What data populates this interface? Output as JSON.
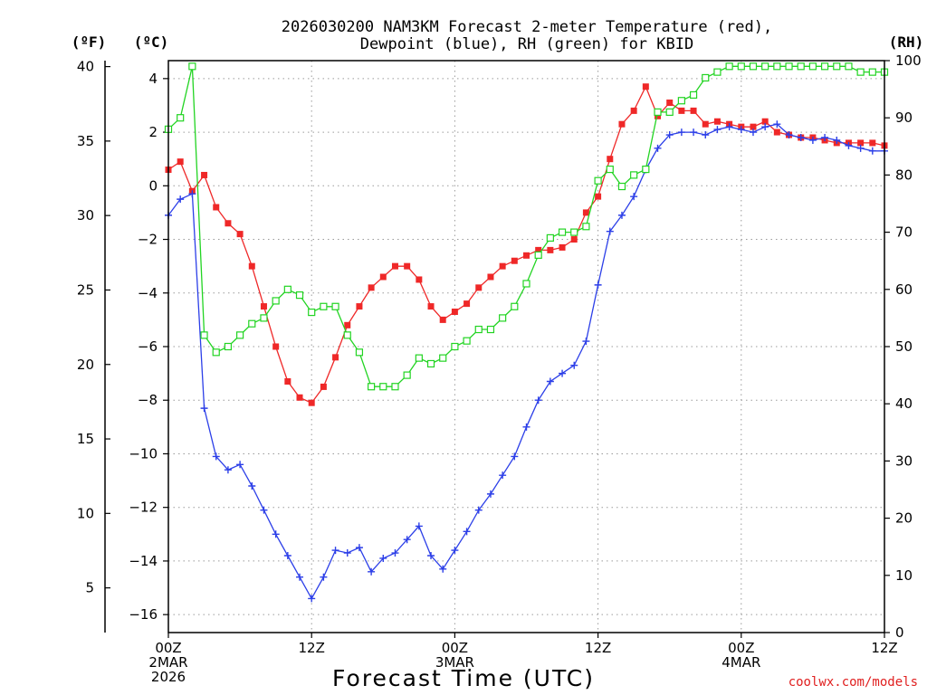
{
  "chart_data": {
    "type": "line",
    "title_line1": "2026030200 NAM3KM Forecast 2-meter Temperature (red),",
    "title_line2": "Dewpoint (blue), RH (green) for KBID",
    "xlabel": "Forecast Time (UTC)",
    "left_unit_f": "(ºF)",
    "left_unit_c": "(ºC)",
    "right_unit": "(RH)",
    "credit": "coolwx.com/models",
    "x_range_hours": [
      0,
      60
    ],
    "ylim_c": [
      -16.67,
      4.67
    ],
    "ylim_f": [
      2,
      40.4
    ],
    "ylim_rh": [
      0,
      100
    ],
    "celsius_ticks": [
      "4",
      "2",
      "0",
      "−2",
      "−4",
      "−6",
      "−8",
      "−10",
      "−12",
      "−14",
      "−16"
    ],
    "fahrenheit_ticks": [
      "40",
      "35",
      "30",
      "25",
      "20",
      "15",
      "10",
      "5"
    ],
    "rh_ticks": [
      "100",
      "90",
      "80",
      "70",
      "60",
      "50",
      "40",
      "30",
      "20",
      "10",
      "0"
    ],
    "x_ticks": [
      {
        "hour": 0,
        "line1": "00Z",
        "line2": "2MAR",
        "line3": "2026"
      },
      {
        "hour": 12,
        "line1": "12Z",
        "line2": "",
        "line3": ""
      },
      {
        "hour": 24,
        "line1": "00Z",
        "line2": "3MAR",
        "line3": ""
      },
      {
        "hour": 36,
        "line1": "12Z",
        "line2": "",
        "line3": ""
      },
      {
        "hour": 48,
        "line1": "00Z",
        "line2": "4MAR",
        "line3": ""
      },
      {
        "hour": 60,
        "line1": "12Z",
        "line2": "",
        "line3": ""
      }
    ],
    "x_hours": [
      0,
      1,
      2,
      3,
      4,
      5,
      6,
      7,
      8,
      9,
      10,
      11,
      12,
      13,
      14,
      15,
      16,
      17,
      18,
      19,
      20,
      21,
      22,
      23,
      24,
      25,
      26,
      27,
      28,
      29,
      30,
      31,
      32,
      33,
      34,
      35,
      36,
      37,
      38,
      39,
      40,
      41,
      42,
      43,
      44,
      45,
      46,
      47,
      48,
      49,
      50,
      51,
      52,
      53,
      54,
      55,
      56,
      57,
      58,
      59,
      60
    ],
    "series": [
      {
        "name": "2-meter Temperature",
        "units": "°C",
        "color": "#ef2828",
        "marker": "filled-square",
        "values": [
          0.6,
          0.9,
          -0.2,
          0.4,
          -0.8,
          -1.4,
          -1.8,
          -3.0,
          -4.5,
          -6.0,
          -7.3,
          -7.9,
          -8.1,
          -7.5,
          -6.4,
          -5.2,
          -4.5,
          -3.8,
          -3.4,
          -3.0,
          -3.0,
          -3.5,
          -4.5,
          -5.0,
          -4.7,
          -4.4,
          -3.8,
          -3.4,
          -3.0,
          -2.8,
          -2.6,
          -2.4,
          -2.4,
          -2.3,
          -2.0,
          -1.0,
          -0.4,
          1.0,
          2.3,
          2.8,
          3.7,
          2.6,
          3.1,
          2.8,
          2.8,
          2.3,
          2.4,
          2.3,
          2.2,
          2.2,
          2.4,
          2.0,
          1.9,
          1.8,
          1.8,
          1.7,
          1.6,
          1.6,
          1.6,
          1.6,
          1.5
        ]
      },
      {
        "name": "Dewpoint",
        "units": "°C",
        "color": "#2c3fe8",
        "marker": "plus",
        "values": [
          -1.1,
          -0.5,
          -0.3,
          -8.3,
          -10.1,
          -10.6,
          -10.4,
          -11.2,
          -12.1,
          -13.0,
          -13.8,
          -14.6,
          -15.4,
          -14.6,
          -13.6,
          -13.7,
          -13.5,
          -14.4,
          -13.9,
          -13.7,
          -13.2,
          -12.7,
          -13.8,
          -14.3,
          -13.6,
          -12.9,
          -12.1,
          -11.5,
          -10.8,
          -10.1,
          -9.0,
          -8.0,
          -7.3,
          -7.0,
          -6.7,
          -5.8,
          -3.7,
          -1.7,
          -1.1,
          -0.4,
          0.6,
          1.4,
          1.9,
          2.0,
          2.0,
          1.9,
          2.1,
          2.2,
          2.1,
          2.0,
          2.2,
          2.3,
          1.9,
          1.8,
          1.7,
          1.8,
          1.7,
          1.5,
          1.4,
          1.3,
          1.3
        ]
      },
      {
        "name": "Relative Humidity",
        "units": "%",
        "color": "#22d422",
        "marker": "open-square",
        "values": [
          88,
          90,
          99,
          52,
          49,
          50,
          52,
          54,
          55,
          58,
          60,
          59,
          56,
          57,
          57,
          52,
          49,
          43,
          43,
          43,
          45,
          48,
          47,
          48,
          50,
          51,
          53,
          53,
          55,
          57,
          61,
          66,
          69,
          70,
          70,
          71,
          79,
          81,
          78,
          80,
          81,
          91,
          91,
          93,
          94,
          97,
          98,
          99,
          99,
          99,
          99,
          99,
          99,
          99,
          99,
          99,
          99,
          99,
          98,
          98,
          98
        ]
      }
    ]
  }
}
